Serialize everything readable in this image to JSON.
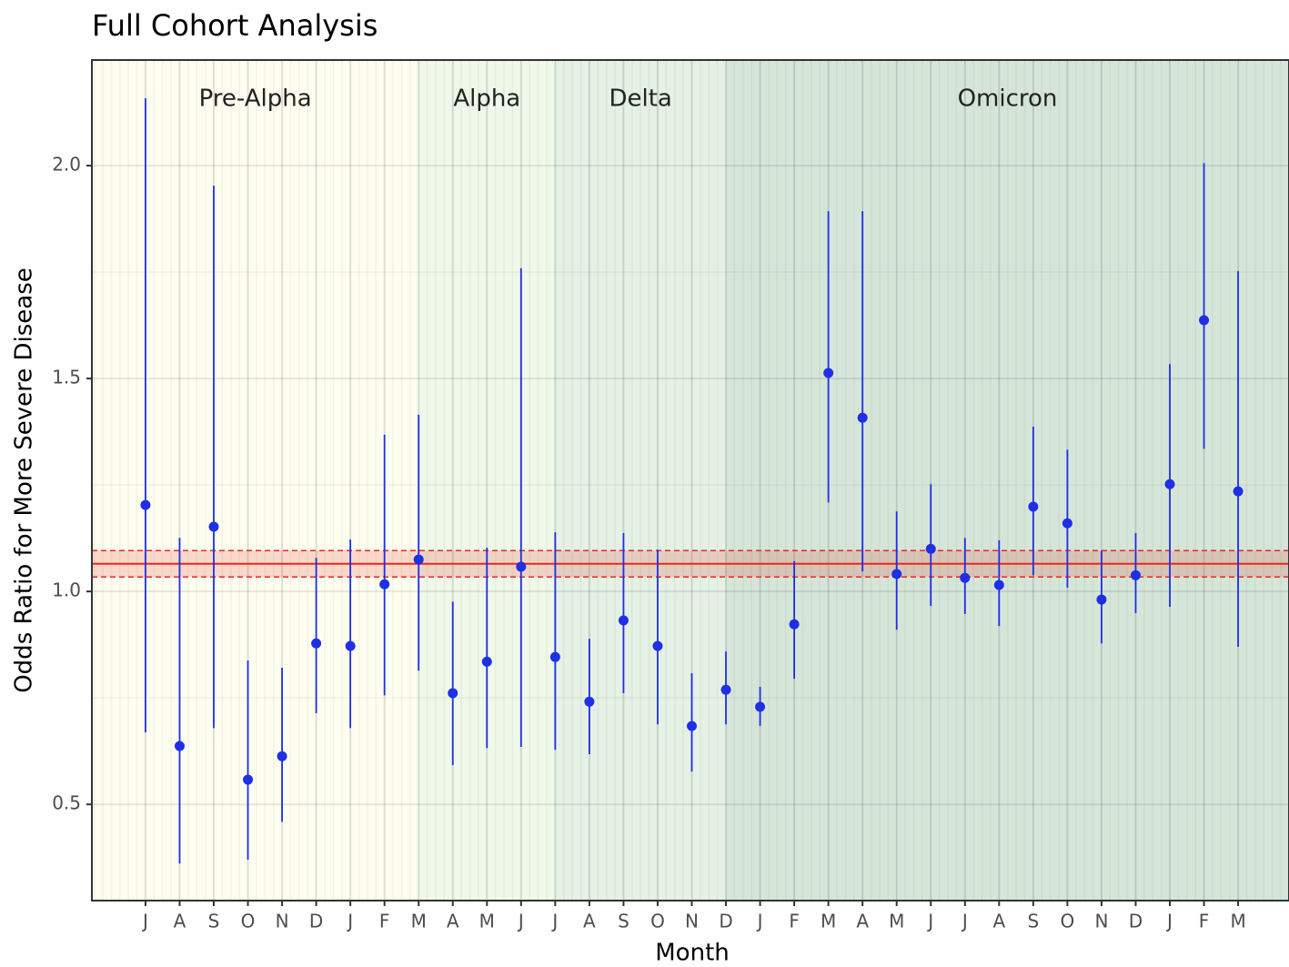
{
  "chart_data": {
    "type": "errorbar",
    "title": "Full Cohort Analysis",
    "xlabel": "Month",
    "ylabel": "Odds Ratio for More Severe Disease",
    "categories": [
      "J",
      "A",
      "S",
      "O",
      "N",
      "D",
      "J",
      "F",
      "M",
      "A",
      "M",
      "J",
      "J",
      "A",
      "S",
      "O",
      "N",
      "D",
      "J",
      "F",
      "M",
      "A",
      "M",
      "J",
      "J",
      "A",
      "S",
      "O",
      "N",
      "D",
      "J",
      "F",
      "M"
    ],
    "series": [
      {
        "name": "Odds ratio",
        "color": "#1f2fe6",
        "values": [
          1.203,
          0.637,
          1.152,
          0.558,
          0.613,
          0.878,
          0.872,
          1.017,
          1.075,
          0.761,
          0.835,
          1.058,
          0.846,
          0.741,
          0.932,
          0.872,
          0.684,
          0.769,
          0.729,
          0.923,
          1.513,
          1.408,
          1.041,
          1.1,
          1.032,
          1.015,
          1.199,
          1.16,
          0.981,
          1.038,
          1.252,
          1.637,
          1.235
        ],
        "lower": [
          0.669,
          0.361,
          0.679,
          0.37,
          0.459,
          0.714,
          0.679,
          0.756,
          0.814,
          0.592,
          0.632,
          0.635,
          0.628,
          0.618,
          0.761,
          0.688,
          0.577,
          0.688,
          0.684,
          0.795,
          1.209,
          1.047,
          0.91,
          0.966,
          0.947,
          0.919,
          1.038,
          1.009,
          0.878,
          0.949,
          0.964,
          1.335,
          0.87
        ],
        "upper": [
          2.158,
          1.126,
          1.953,
          0.838,
          0.821,
          1.079,
          1.122,
          1.368,
          1.415,
          0.976,
          1.103,
          1.759,
          1.139,
          0.889,
          1.137,
          1.098,
          0.808,
          0.859,
          0.776,
          1.071,
          1.893,
          1.893,
          1.188,
          1.252,
          1.126,
          1.12,
          1.387,
          1.333,
          1.096,
          1.137,
          1.534,
          2.006,
          1.752
        ]
      }
    ],
    "reference": {
      "value": 1.065,
      "lower": 1.034,
      "upper": 1.096,
      "color": "#e8291c"
    },
    "eras": [
      {
        "name": "Pre-Alpha",
        "start": -1.57,
        "end": 8,
        "color": "#fdfef0"
      },
      {
        "name": "Alpha",
        "start": 8,
        "end": 12,
        "color": "#eff8e9"
      },
      {
        "name": "Delta",
        "start": 12,
        "end": 17,
        "color": "#e4f1e4"
      },
      {
        "name": "Omicron",
        "start": 17,
        "end": 33.49,
        "color": "#d5e6d9"
      }
    ],
    "xlim": [
      -1.57,
      33.49
    ],
    "ylim": [
      0.274,
      2.248
    ],
    "yticks": [
      {
        "value": 0.5,
        "label": "0.5"
      },
      {
        "value": 1,
        "label": "1.0"
      },
      {
        "value": 1.5,
        "label": "1.5"
      },
      {
        "value": 2,
        "label": "2.0"
      }
    ],
    "minor_yticks": [
      0.75,
      1.25,
      1.75
    ],
    "grid": true
  }
}
